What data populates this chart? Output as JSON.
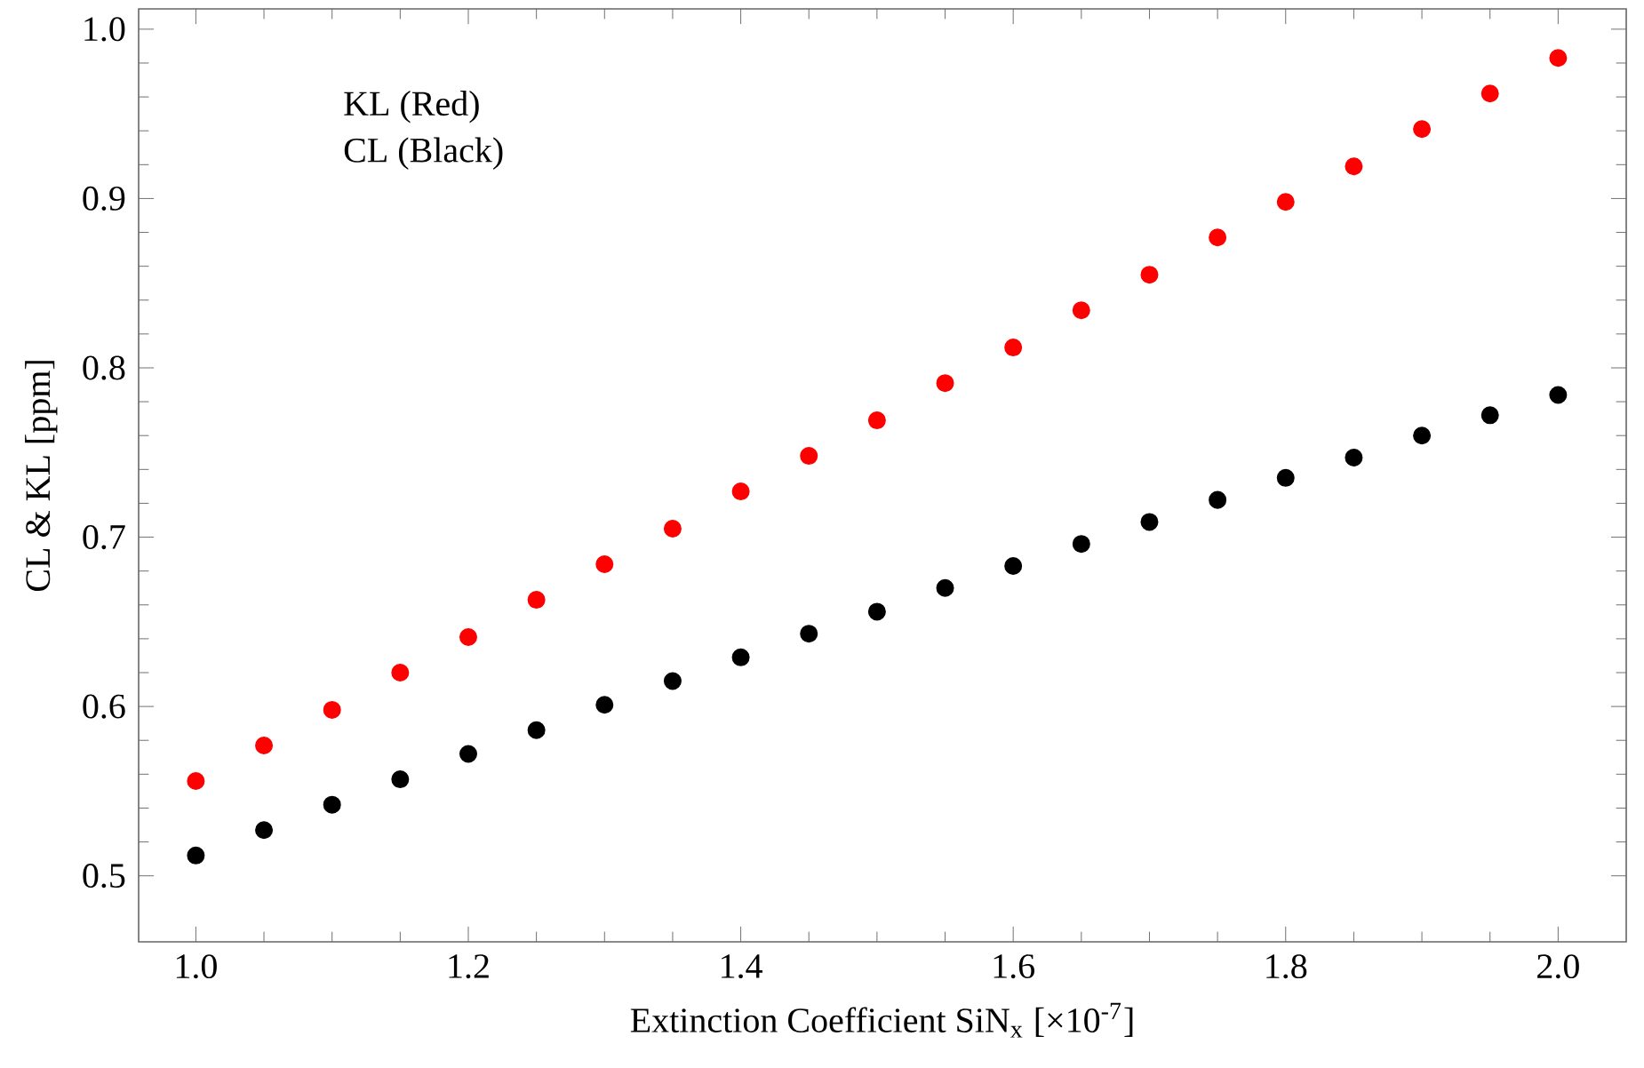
{
  "chart_data": {
    "type": "scatter",
    "xlabel": "Extinction Coefficient  SiN$_{x}$ [×10$^{-7}$]",
    "ylabel": "CL & KL [ppm]",
    "annotations": [
      "KL (Red)",
      "CL (Black)"
    ],
    "x": [
      1.0,
      1.05,
      1.1,
      1.15,
      1.2,
      1.25,
      1.3,
      1.35,
      1.4,
      1.45,
      1.5,
      1.55,
      1.6,
      1.65,
      1.7,
      1.75,
      1.8,
      1.85,
      1.9,
      1.95,
      2.0
    ],
    "series": [
      {
        "color": "#ff0000",
        "values": [
          0.556,
          0.577,
          0.598,
          0.62,
          0.641,
          0.663,
          0.684,
          0.705,
          0.727,
          0.748,
          0.769,
          0.791,
          0.812,
          0.834,
          0.855,
          0.877,
          0.898,
          0.919,
          0.941,
          0.962,
          0.983
        ]
      },
      {
        "color": "#000000",
        "values": [
          0.512,
          0.527,
          0.542,
          0.557,
          0.572,
          0.586,
          0.601,
          0.615,
          0.629,
          0.643,
          0.656,
          0.67,
          0.683,
          0.696,
          0.709,
          0.722,
          0.735,
          0.747,
          0.76,
          0.772,
          0.784
        ]
      }
    ],
    "marker": "circle",
    "xlim": [
      0.958,
      2.05
    ],
    "ylim": [
      0.461,
      1.012
    ],
    "xticks": [
      {
        "value": 1.0,
        "label": "1.0"
      },
      {
        "value": 1.2,
        "label": "1.2"
      },
      {
        "value": 1.4,
        "label": "1.4"
      },
      {
        "value": 1.6,
        "label": "1.6"
      },
      {
        "value": 1.8,
        "label": "1.8"
      },
      {
        "value": 2.0,
        "label": "2.0"
      }
    ],
    "yticks": [
      {
        "value": 0.5,
        "label": "0.5"
      },
      {
        "value": 0.6,
        "label": "0.6"
      },
      {
        "value": 0.7,
        "label": "0.7"
      },
      {
        "value": 0.8,
        "label": "0.8"
      },
      {
        "value": 0.9,
        "label": "0.9"
      },
      {
        "value": 1.0,
        "label": "1.0"
      }
    ]
  }
}
